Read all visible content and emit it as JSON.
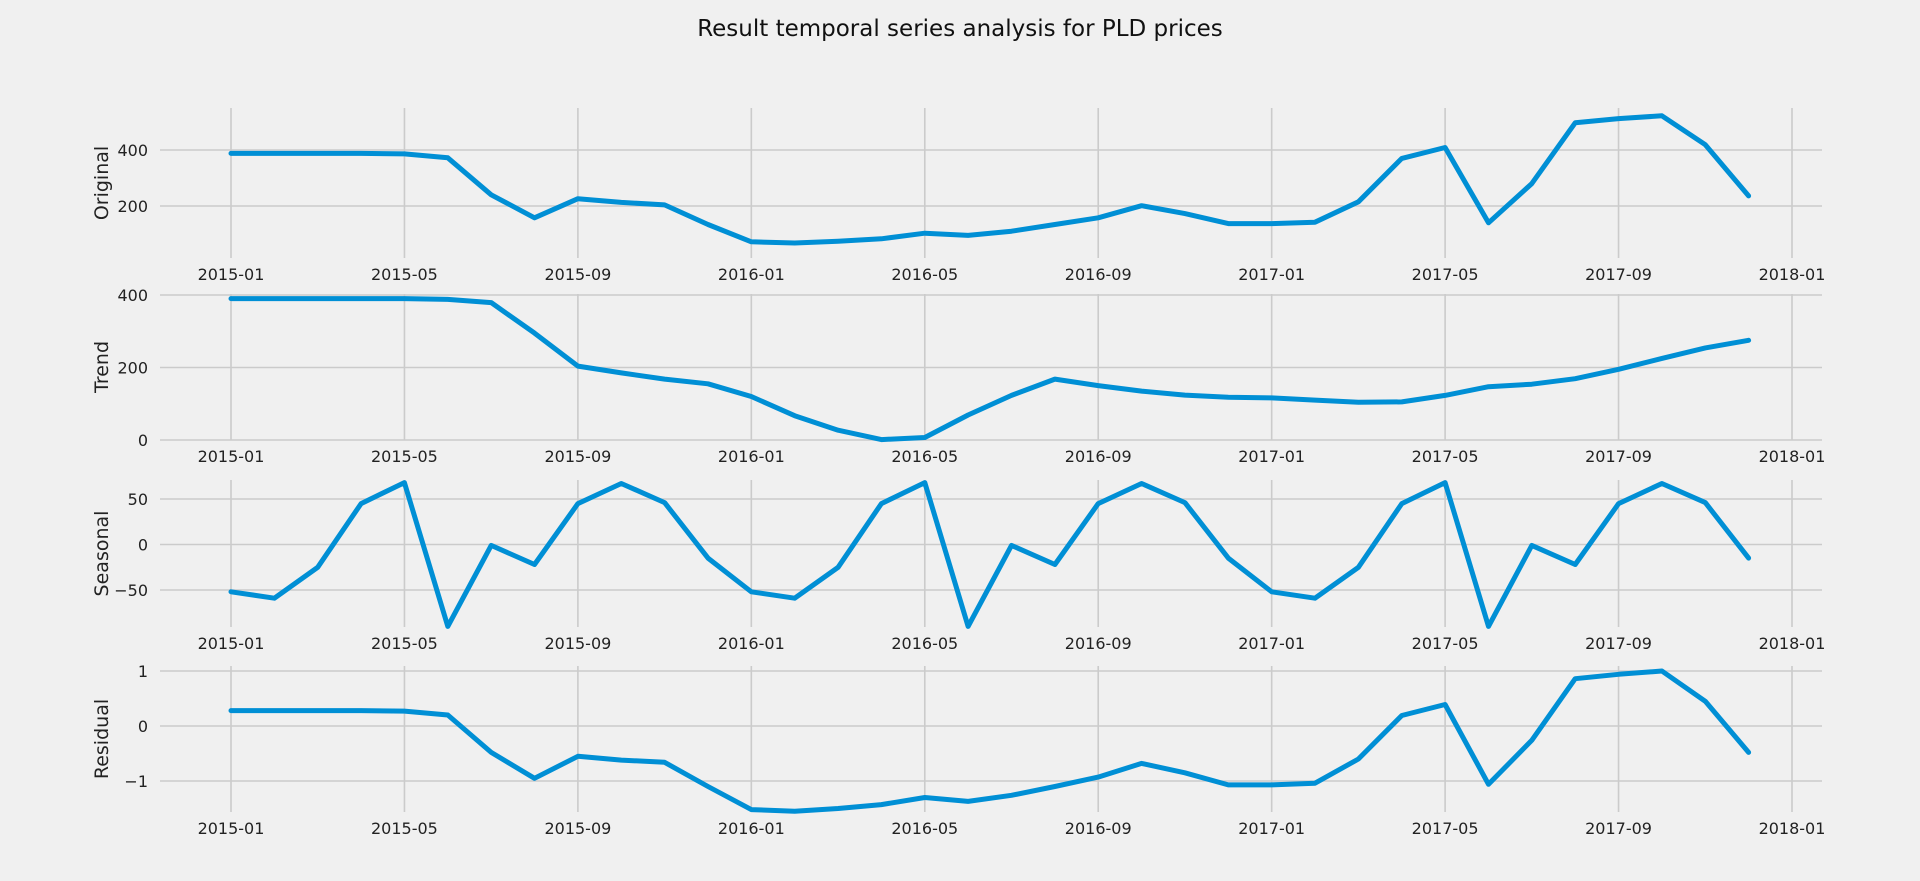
{
  "figure": {
    "title": "Result temporal series analysis for PLD prices",
    "background": "#f0f0f0",
    "line_color": "#008fd5",
    "grid_color": "#cbcbcb"
  },
  "chart_data": [
    {
      "type": "line",
      "ylabel": "Original",
      "x": [
        "2015-01",
        "2015-02",
        "2015-03",
        "2015-04",
        "2015-05",
        "2015-06",
        "2015-07",
        "2015-08",
        "2015-09",
        "2015-10",
        "2015-11",
        "2015-12",
        "2016-01",
        "2016-02",
        "2016-03",
        "2016-04",
        "2016-05",
        "2016-06",
        "2016-07",
        "2016-08",
        "2016-09",
        "2016-10",
        "2016-11",
        "2016-12",
        "2017-01",
        "2017-02",
        "2017-03",
        "2017-04",
        "2017-05",
        "2017-06",
        "2017-07",
        "2017-08",
        "2017-09",
        "2017-10",
        "2017-11",
        "2017-12"
      ],
      "y": [
        388,
        388,
        388,
        388,
        386,
        372,
        240,
        158,
        226,
        213,
        204,
        134,
        72,
        68,
        74,
        83,
        103,
        95,
        110,
        134,
        158,
        201,
        173,
        137,
        137,
        142,
        215,
        370,
        409,
        140,
        280,
        497,
        512,
        522,
        419,
        236
      ],
      "ylim": [
        0,
        540
      ],
      "yticks": [
        200,
        400
      ],
      "xticks": [
        "2015-01",
        "2015-05",
        "2015-09",
        "2016-01",
        "2016-05",
        "2016-09",
        "2017-01",
        "2017-05",
        "2017-09",
        "2018-01"
      ],
      "grid": true
    },
    {
      "type": "line",
      "ylabel": "Trend",
      "x": [
        "2015-01",
        "2015-02",
        "2015-03",
        "2015-04",
        "2015-05",
        "2015-06",
        "2015-07",
        "2015-08",
        "2015-09",
        "2015-10",
        "2015-11",
        "2015-12",
        "2016-01",
        "2016-02",
        "2016-03",
        "2016-04",
        "2016-05",
        "2016-06",
        "2016-07",
        "2016-08",
        "2016-09",
        "2016-10",
        "2016-11",
        "2016-12",
        "2017-01",
        "2017-02",
        "2017-03",
        "2017-04",
        "2017-05",
        "2017-06",
        "2017-07",
        "2017-08",
        "2017-09",
        "2017-10",
        "2017-11",
        "2017-12"
      ],
      "y": [
        390,
        390,
        390,
        390,
        390,
        388,
        379,
        295,
        204,
        185,
        168,
        155,
        120,
        67,
        27,
        1,
        7,
        69,
        123,
        168,
        150,
        135,
        124,
        118,
        116,
        110,
        104,
        105,
        123,
        147,
        154,
        169,
        195,
        225,
        254,
        275
      ],
      "ylim": [
        0,
        400
      ],
      "yticks": [
        0,
        200,
        400
      ],
      "xticks": [
        "2015-01",
        "2015-05",
        "2015-09",
        "2016-01",
        "2016-05",
        "2016-09",
        "2017-01",
        "2017-05",
        "2017-09",
        "2018-01"
      ],
      "grid": true
    },
    {
      "type": "line",
      "ylabel": "Seasonal",
      "x": [
        "2015-01",
        "2015-02",
        "2015-03",
        "2015-04",
        "2015-05",
        "2015-06",
        "2015-07",
        "2015-08",
        "2015-09",
        "2015-10",
        "2015-11",
        "2015-12",
        "2016-01",
        "2016-02",
        "2016-03",
        "2016-04",
        "2016-05",
        "2016-06",
        "2016-07",
        "2016-08",
        "2016-09",
        "2016-10",
        "2016-11",
        "2016-12",
        "2017-01",
        "2017-02",
        "2017-03",
        "2017-04",
        "2017-05",
        "2017-06",
        "2017-07",
        "2017-08",
        "2017-09",
        "2017-10",
        "2017-11",
        "2017-12"
      ],
      "y": [
        -52,
        -59,
        -25,
        45,
        68,
        -90,
        -1,
        -22,
        45,
        67,
        46,
        -15,
        -52,
        -59,
        -25,
        45,
        68,
        -90,
        -1,
        -22,
        45,
        67,
        46,
        -15,
        -52,
        -59,
        -25,
        45,
        68,
        -90,
        -1,
        -22,
        45,
        67,
        46,
        -15
      ],
      "ylim": [
        -90,
        68
      ],
      "yticks": [
        -50,
        0,
        50
      ],
      "xticks": [
        "2015-01",
        "2015-05",
        "2015-09",
        "2016-01",
        "2016-05",
        "2016-09",
        "2017-01",
        "2017-05",
        "2017-09",
        "2018-01"
      ],
      "grid": true
    },
    {
      "type": "line",
      "ylabel": "Residual",
      "x": [
        "2015-01",
        "2015-02",
        "2015-03",
        "2015-04",
        "2015-05",
        "2015-06",
        "2015-07",
        "2015-08",
        "2015-09",
        "2015-10",
        "2015-11",
        "2015-12",
        "2016-01",
        "2016-02",
        "2016-03",
        "2016-04",
        "2016-05",
        "2016-06",
        "2016-07",
        "2016-08",
        "2016-09",
        "2016-10",
        "2016-11",
        "2016-12",
        "2017-01",
        "2017-02",
        "2017-03",
        "2017-04",
        "2017-05",
        "2017-06",
        "2017-07",
        "2017-08",
        "2017-09",
        "2017-10",
        "2017-11",
        "2017-12"
      ],
      "y": [
        0.28,
        0.28,
        0.28,
        0.28,
        0.27,
        0.2,
        -0.48,
        -0.95,
        -0.55,
        -0.62,
        -0.66,
        -1.1,
        -1.52,
        -1.55,
        -1.5,
        -1.43,
        -1.3,
        -1.37,
        -1.26,
        -1.1,
        -0.93,
        -0.68,
        -0.85,
        -1.07,
        -1.07,
        -1.04,
        -0.6,
        0.19,
        0.39,
        -1.06,
        -0.26,
        0.86,
        0.94,
        1.0,
        0.45,
        -0.48
      ],
      "ylim": [
        -1.55,
        1.0
      ],
      "yticks": [
        -1,
        0,
        1
      ],
      "xticks": [
        "2015-01",
        "2015-05",
        "2015-09",
        "2016-01",
        "2016-05",
        "2016-09",
        "2017-01",
        "2017-05",
        "2017-09",
        "2018-01"
      ],
      "grid": true
    }
  ]
}
